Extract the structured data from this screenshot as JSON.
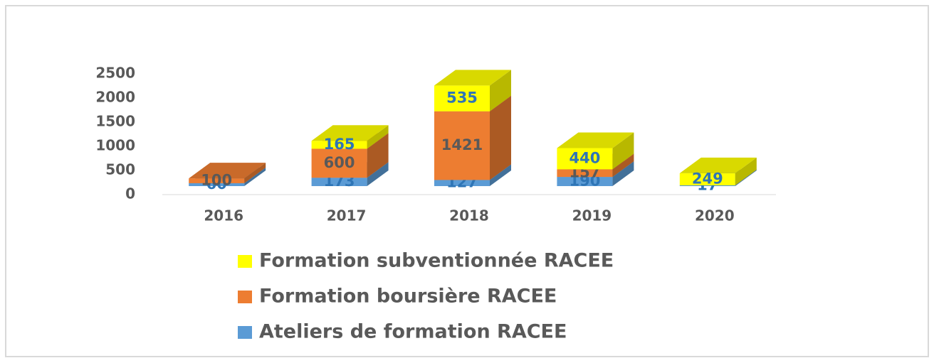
{
  "chart_data": {
    "type": "bar3d_stacked",
    "categories": [
      "2016",
      "2017",
      "2018",
      "2019",
      "2020"
    ],
    "series": [
      {
        "name": "Ateliers de formation RACEE",
        "color": "#5b9bd5",
        "values": [
          60,
          173,
          127,
          190,
          17
        ]
      },
      {
        "name": "Formation boursière RACEE",
        "color": "#ed7d31",
        "values": [
          100,
          600,
          1421,
          157,
          null
        ]
      },
      {
        "name": "Formation subventionnée RACEE",
        "color": "#ffff00",
        "values": [
          null,
          165,
          535,
          440,
          249
        ]
      }
    ],
    "ylim": [
      0,
      2500
    ],
    "yticks": [
      0,
      500,
      1000,
      1500,
      2000,
      2500
    ],
    "grid": false,
    "legend": "bottom"
  }
}
